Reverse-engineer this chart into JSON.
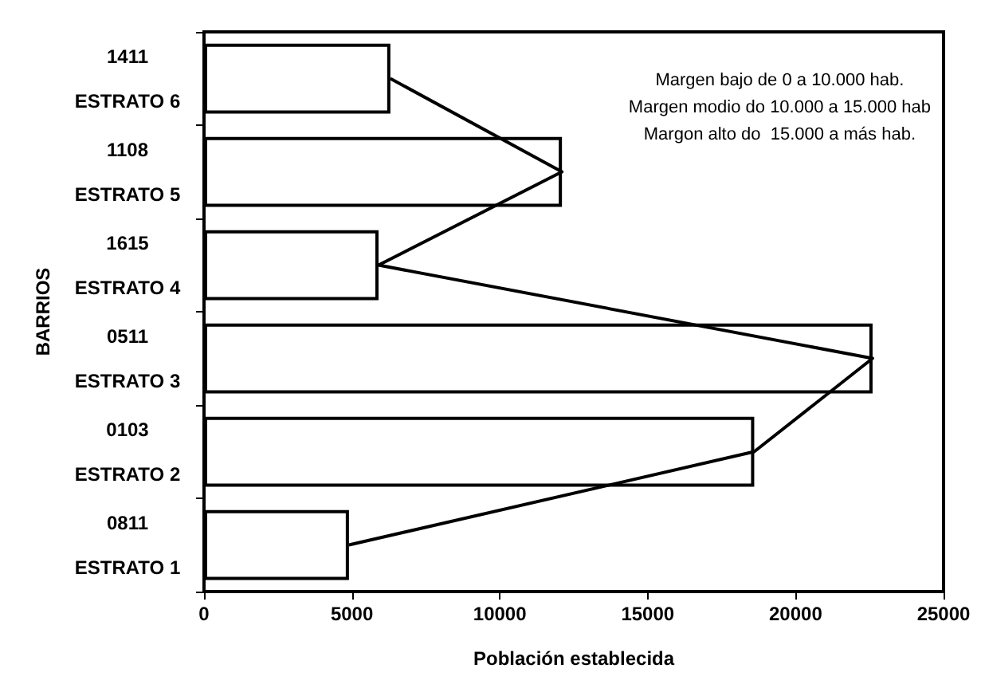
{
  "chart_data": {
    "type": "bar",
    "orientation": "horizontal",
    "xlabel": "Población establecida",
    "ylabel": "BARRIOS",
    "categories": [
      "1411\nESTRATO 6",
      "1108\nESTRATO 5",
      "1615\nESTRATO 4",
      "0511\nESTRATO 3",
      "0103\nESTRATO 2",
      "0811\nESTRATO 1"
    ],
    "series": [
      {
        "color": "#ffffff",
        "values": [
          6300,
          12100,
          5900,
          22600,
          18600,
          4900
        ]
      },
      {
        "type": "line",
        "color": "#000000",
        "values": [
          6300,
          12100,
          5900,
          22600,
          18600,
          4900
        ]
      }
    ],
    "xlim": [
      0,
      25000
    ],
    "xticks": [
      0,
      5000,
      10000,
      15000,
      20000,
      25000
    ],
    "grid": false,
    "marker": "none",
    "line_style": "solid",
    "annotations": [
      "Margen bajo de 0 a 10.000 hab.",
      "Margen modio do 10.000 a 15.000 hab",
      "Margon alto do  15.000 a más hab."
    ]
  }
}
